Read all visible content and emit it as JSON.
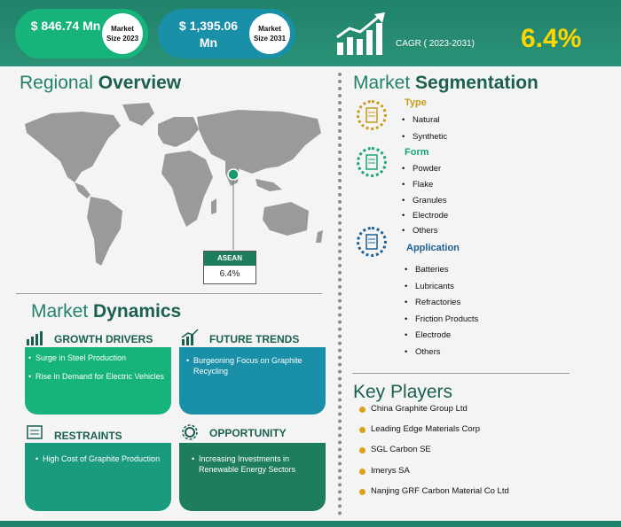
{
  "header": {
    "market_2023": {
      "value": "$ 846.74 Mn",
      "label": "Market Size 2023"
    },
    "market_2031": {
      "value": "$ 1,395.06 Mn",
      "label": "Market Size 2031"
    },
    "cagr_label": "CAGR ( 2023-2031)",
    "cagr_value": "6.4%"
  },
  "regional": {
    "title_light": "Regional ",
    "title_bold": "Overview",
    "highlight_region": "ASEAN",
    "highlight_value": "6.4%"
  },
  "segmentation": {
    "title_light": "Market ",
    "title_bold": "Segmentation",
    "groups": [
      {
        "name": "Type",
        "color": "#c79a1a",
        "items": [
          "Natural",
          "Synthetic"
        ]
      },
      {
        "name": "Form",
        "color": "#16a47a",
        "items": [
          "Powder",
          "Flake",
          "Granules",
          "Electrode",
          "Others"
        ]
      },
      {
        "name": "Application",
        "color": "#1a5f95",
        "items": [
          "Batteries",
          "Lubricants",
          "Refractories",
          "Friction Products",
          "Electrode",
          "Others"
        ]
      }
    ]
  },
  "key_players": {
    "title": "Key Players",
    "items": [
      "China Graphite Group Ltd",
      "Leading Edge Materials Corp",
      "SGL Carbon SE",
      "Imerys SA",
      "Nanjing GRF Carbon Material Co Ltd"
    ]
  },
  "dynamics": {
    "title_light": "Market ",
    "title_bold": "Dynamics",
    "growth_drivers": {
      "title": "GROWTH DRIVERS",
      "items": [
        "Surge in Steel Production",
        "Rise in Demand for Electric Vehicles"
      ]
    },
    "future_trends": {
      "title": "FUTURE TRENDS",
      "items": [
        "Burgeoning Focus on Graphite Recycling"
      ]
    },
    "restraints": {
      "title": "RESTRAINTS",
      "items": [
        "High Cost of Graphite Production"
      ]
    },
    "opportunity": {
      "title": "OPPORTUNITY",
      "items": [
        "Increasing Investments in Renewable Energy Sectors"
      ]
    }
  },
  "colors": {
    "brand_green": "#20826a",
    "growth_card": "#16b47a",
    "trend_card": "#1a8fa8",
    "restraint_card": "#1a9a7e",
    "opportunity_card": "#1f7d5f",
    "cagr_yellow": "#ffd700"
  }
}
